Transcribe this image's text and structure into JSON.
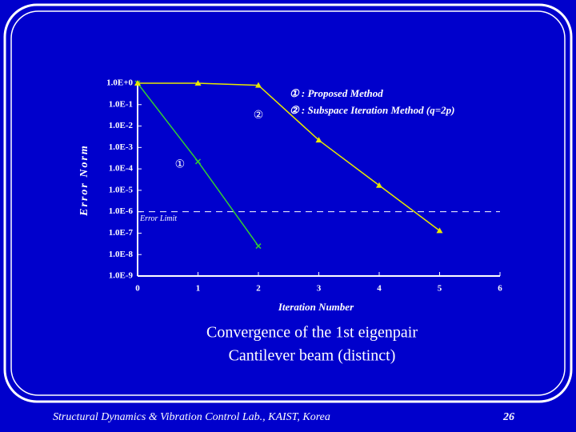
{
  "chart_data": {
    "type": "line",
    "title": "Convergence of the 1st eigenpair",
    "subtitle": "Cantilever beam (distinct)",
    "x_label": "Iteration Number",
    "y_label": "Error Norm",
    "log_y": true,
    "xlim": [
      0,
      6
    ],
    "xticks": [
      0,
      1,
      2,
      3,
      4,
      5,
      6
    ],
    "ylim": [
      1e-09,
      1
    ],
    "yticks": [
      {
        "value": 1,
        "label": "1.0E+0"
      },
      {
        "value": 0.1,
        "label": "1.0E-1"
      },
      {
        "value": 0.01,
        "label": "1.0E-2"
      },
      {
        "value": 0.001,
        "label": "1.0E-3"
      },
      {
        "value": 0.0001,
        "label": "1.0E-4"
      },
      {
        "value": 1e-05,
        "label": "1.0E-5"
      },
      {
        "value": 1e-06,
        "label": "1.0E-6"
      },
      {
        "value": 1e-07,
        "label": "1.0E-7"
      },
      {
        "value": 1e-08,
        "label": "1.0E-8"
      },
      {
        "value": 1e-09,
        "label": "1.0E-9"
      }
    ],
    "series": [
      {
        "name": "① : Proposed Method",
        "color": "#33cc33",
        "marker": "x",
        "x": [
          0,
          1,
          2
        ],
        "values": [
          1,
          0.00022,
          2.5e-08
        ]
      },
      {
        "name": "② : Subspace Iteration Method (q=2p)",
        "color": "#e8e800",
        "marker": "triangle",
        "x": [
          0,
          1,
          2,
          3,
          4,
          5
        ],
        "values": [
          1,
          1,
          0.8,
          0.0022,
          1.7e-05,
          1.3e-07
        ]
      }
    ],
    "annotations": [
      {
        "text": "①",
        "x": 0.7,
        "y": 0.00015
      },
      {
        "text": "②",
        "x": 2.0,
        "y": 0.03
      }
    ],
    "reference_line": {
      "value": 1e-06,
      "label": "Error Limit"
    }
  },
  "footer": {
    "left": "Structural Dynamics & Vibration Control Lab., KAIST, Korea",
    "page": "26"
  }
}
